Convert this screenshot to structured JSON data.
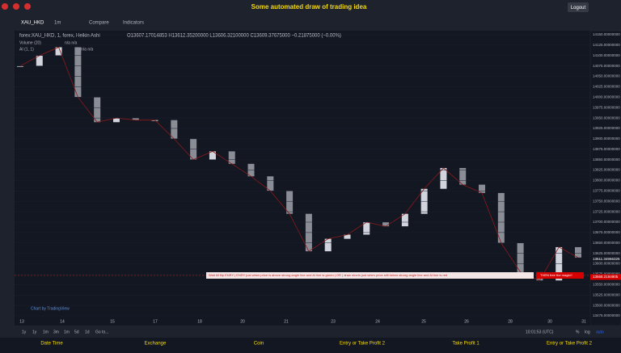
{
  "header": {
    "title": "Some automated draw of trading idea",
    "logout": "Logout"
  },
  "toolbar": {
    "symbol": "XAU_HKD",
    "interval": "1m",
    "compare": "Compare",
    "indicators": "Indicators"
  },
  "legend": {
    "symbol": "forex:XAU_HKD, 1, forex, Heikin Ashi",
    "ohlc": "O13607.17014853  H13612.35200000  L13606.32100000  C13609.37675000  −0.21875000 (−0.00%)",
    "volume": "Volume (20)",
    "ai": "AI (1, 1)",
    "na": "n/a  n/a"
  },
  "chart": {
    "type": "candlestick",
    "values": [
      14075,
      14100,
      14120,
      14000,
      13940,
      13950,
      13945,
      13945,
      13900,
      13850,
      13870,
      13840,
      13810,
      13775,
      13720,
      13630,
      13660,
      13670,
      13700,
      13690,
      13720,
      13780,
      13830,
      13790,
      13770,
      13650,
      13580,
      13560,
      13640,
      13615
    ],
    "ylim": [
      13475,
      14150
    ],
    "yticks": [
      {
        "value": 14150,
        "label": "14150.00000000"
      },
      {
        "value": 14125,
        "label": "14125.00000000"
      },
      {
        "value": 14100,
        "label": "14100.00000000"
      },
      {
        "value": 14075,
        "label": "14075.00000000"
      },
      {
        "value": 14050,
        "label": "14050.00000000"
      },
      {
        "value": 14025,
        "label": "14025.00000000"
      },
      {
        "value": 14000,
        "label": "14000.00000000"
      },
      {
        "value": 13975,
        "label": "13975.00000000"
      },
      {
        "value": 13950,
        "label": "13950.00000000"
      },
      {
        "value": 13925,
        "label": "13925.00000000"
      },
      {
        "value": 13900,
        "label": "13900.00000000"
      },
      {
        "value": 13875,
        "label": "13875.00000000"
      },
      {
        "value": 13850,
        "label": "13850.00000000"
      },
      {
        "value": 13825,
        "label": "13825.00000000"
      },
      {
        "value": 13800,
        "label": "13800.00000000"
      },
      {
        "value": 13775,
        "label": "13775.00000000"
      },
      {
        "value": 13750,
        "label": "13750.00000000"
      },
      {
        "value": 13725,
        "label": "13725.00000000"
      },
      {
        "value": 13700,
        "label": "13700.00000000"
      },
      {
        "value": 13675,
        "label": "13675.00000000"
      },
      {
        "value": 13650,
        "label": "13650.00000000"
      },
      {
        "value": 13625,
        "label": "13625.00000000"
      },
      {
        "value": 13600,
        "label": "13600.00000000"
      },
      {
        "value": 13575,
        "label": "13575.00000000"
      },
      {
        "value": 13550,
        "label": "13550.00000000"
      },
      {
        "value": 13525,
        "label": "13525.00000000"
      },
      {
        "value": 13500,
        "label": "13500.00000000"
      },
      {
        "value": 13475,
        "label": "13475.00000000"
      }
    ],
    "last_price": {
      "value": 13611.34966325,
      "label": "13611.34966325"
    },
    "annotation_price": {
      "value": 13568.2194905,
      "label": "13568.2194905"
    },
    "x_labels": [
      "13",
      "14",
      "15",
      "17",
      "18",
      "20",
      "21",
      "23",
      "24",
      "25",
      "26",
      "28",
      "30",
      "31"
    ],
    "annotation": "Wait till flip ENRY  |  ENRY just when  price is above strong angle line and AI line is green  |  OR  |  draw shorts just when price still below strong angle line and AI line is red",
    "annotation_tag": "THEN free the magic!!",
    "credit": "Chart by TradingView"
  },
  "bottom": {
    "ranges": [
      "1y",
      "1y",
      "1m",
      "3m",
      "1m",
      "5d",
      "1d",
      "Go to..."
    ],
    "time": "10:01:53 (UTC)",
    "percent": "%",
    "log": "log",
    "auto": "auto"
  },
  "footer": [
    "Date Time",
    "Exchange",
    "Coin",
    "Entry or Take Profit 2",
    "Take Profit 1",
    "Entry or Take Profit 2"
  ]
}
